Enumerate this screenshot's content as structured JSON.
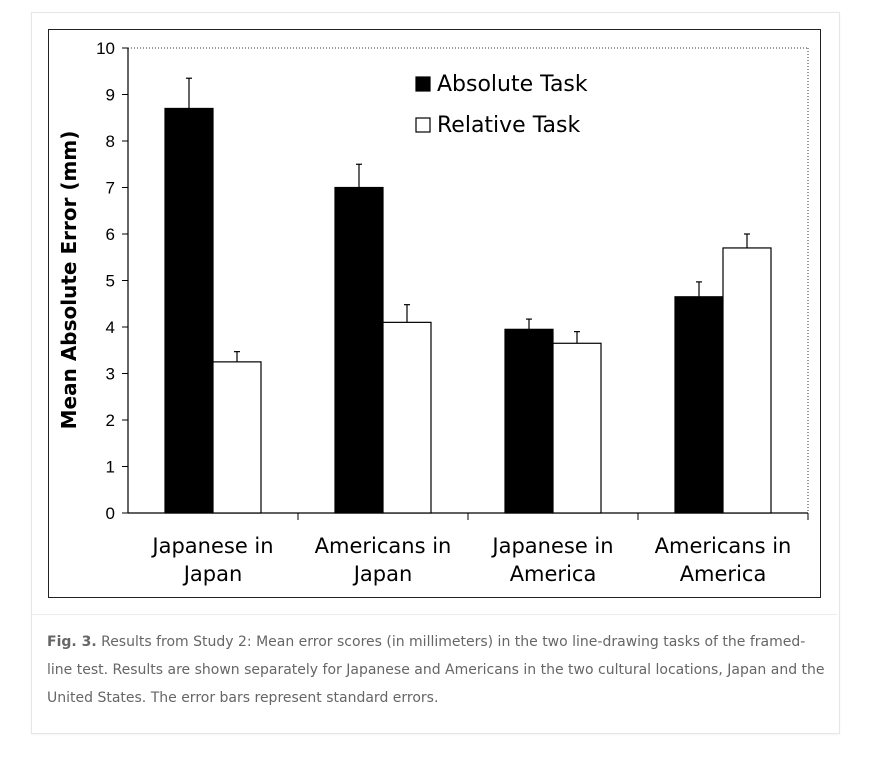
{
  "caption": {
    "label": "Fig. 3.",
    "text": " Results from Study 2: Mean error scores (in millimeters) in the two line-drawing tasks of the framed-line test. Results are shown separately for Japanese and Americans in the two cultural locations, Japan and the United States. The error bars represent standard errors."
  },
  "chart_data": {
    "type": "bar",
    "title": "",
    "xlabel": "",
    "ylabel": "Mean Absolute Error (mm)",
    "ylim": [
      0,
      10
    ],
    "yticks": [
      0,
      1,
      2,
      3,
      4,
      5,
      6,
      7,
      8,
      9,
      10
    ],
    "categories": [
      [
        "Japanese in",
        "Japan"
      ],
      [
        "Americans in",
        "Japan"
      ],
      [
        "Japanese in",
        "America"
      ],
      [
        "Americans in",
        "America"
      ]
    ],
    "series": [
      {
        "name": "Absolute Task",
        "color": "#000000",
        "values": [
          8.7,
          7.0,
          3.95,
          4.65
        ],
        "errors": [
          0.65,
          0.5,
          0.22,
          0.32
        ]
      },
      {
        "name": "Relative Task",
        "color": "#ffffff",
        "values": [
          3.25,
          4.1,
          3.65,
          5.7
        ],
        "errors": [
          0.22,
          0.38,
          0.25,
          0.3
        ]
      }
    ],
    "legend": "top-center",
    "grid": false
  }
}
